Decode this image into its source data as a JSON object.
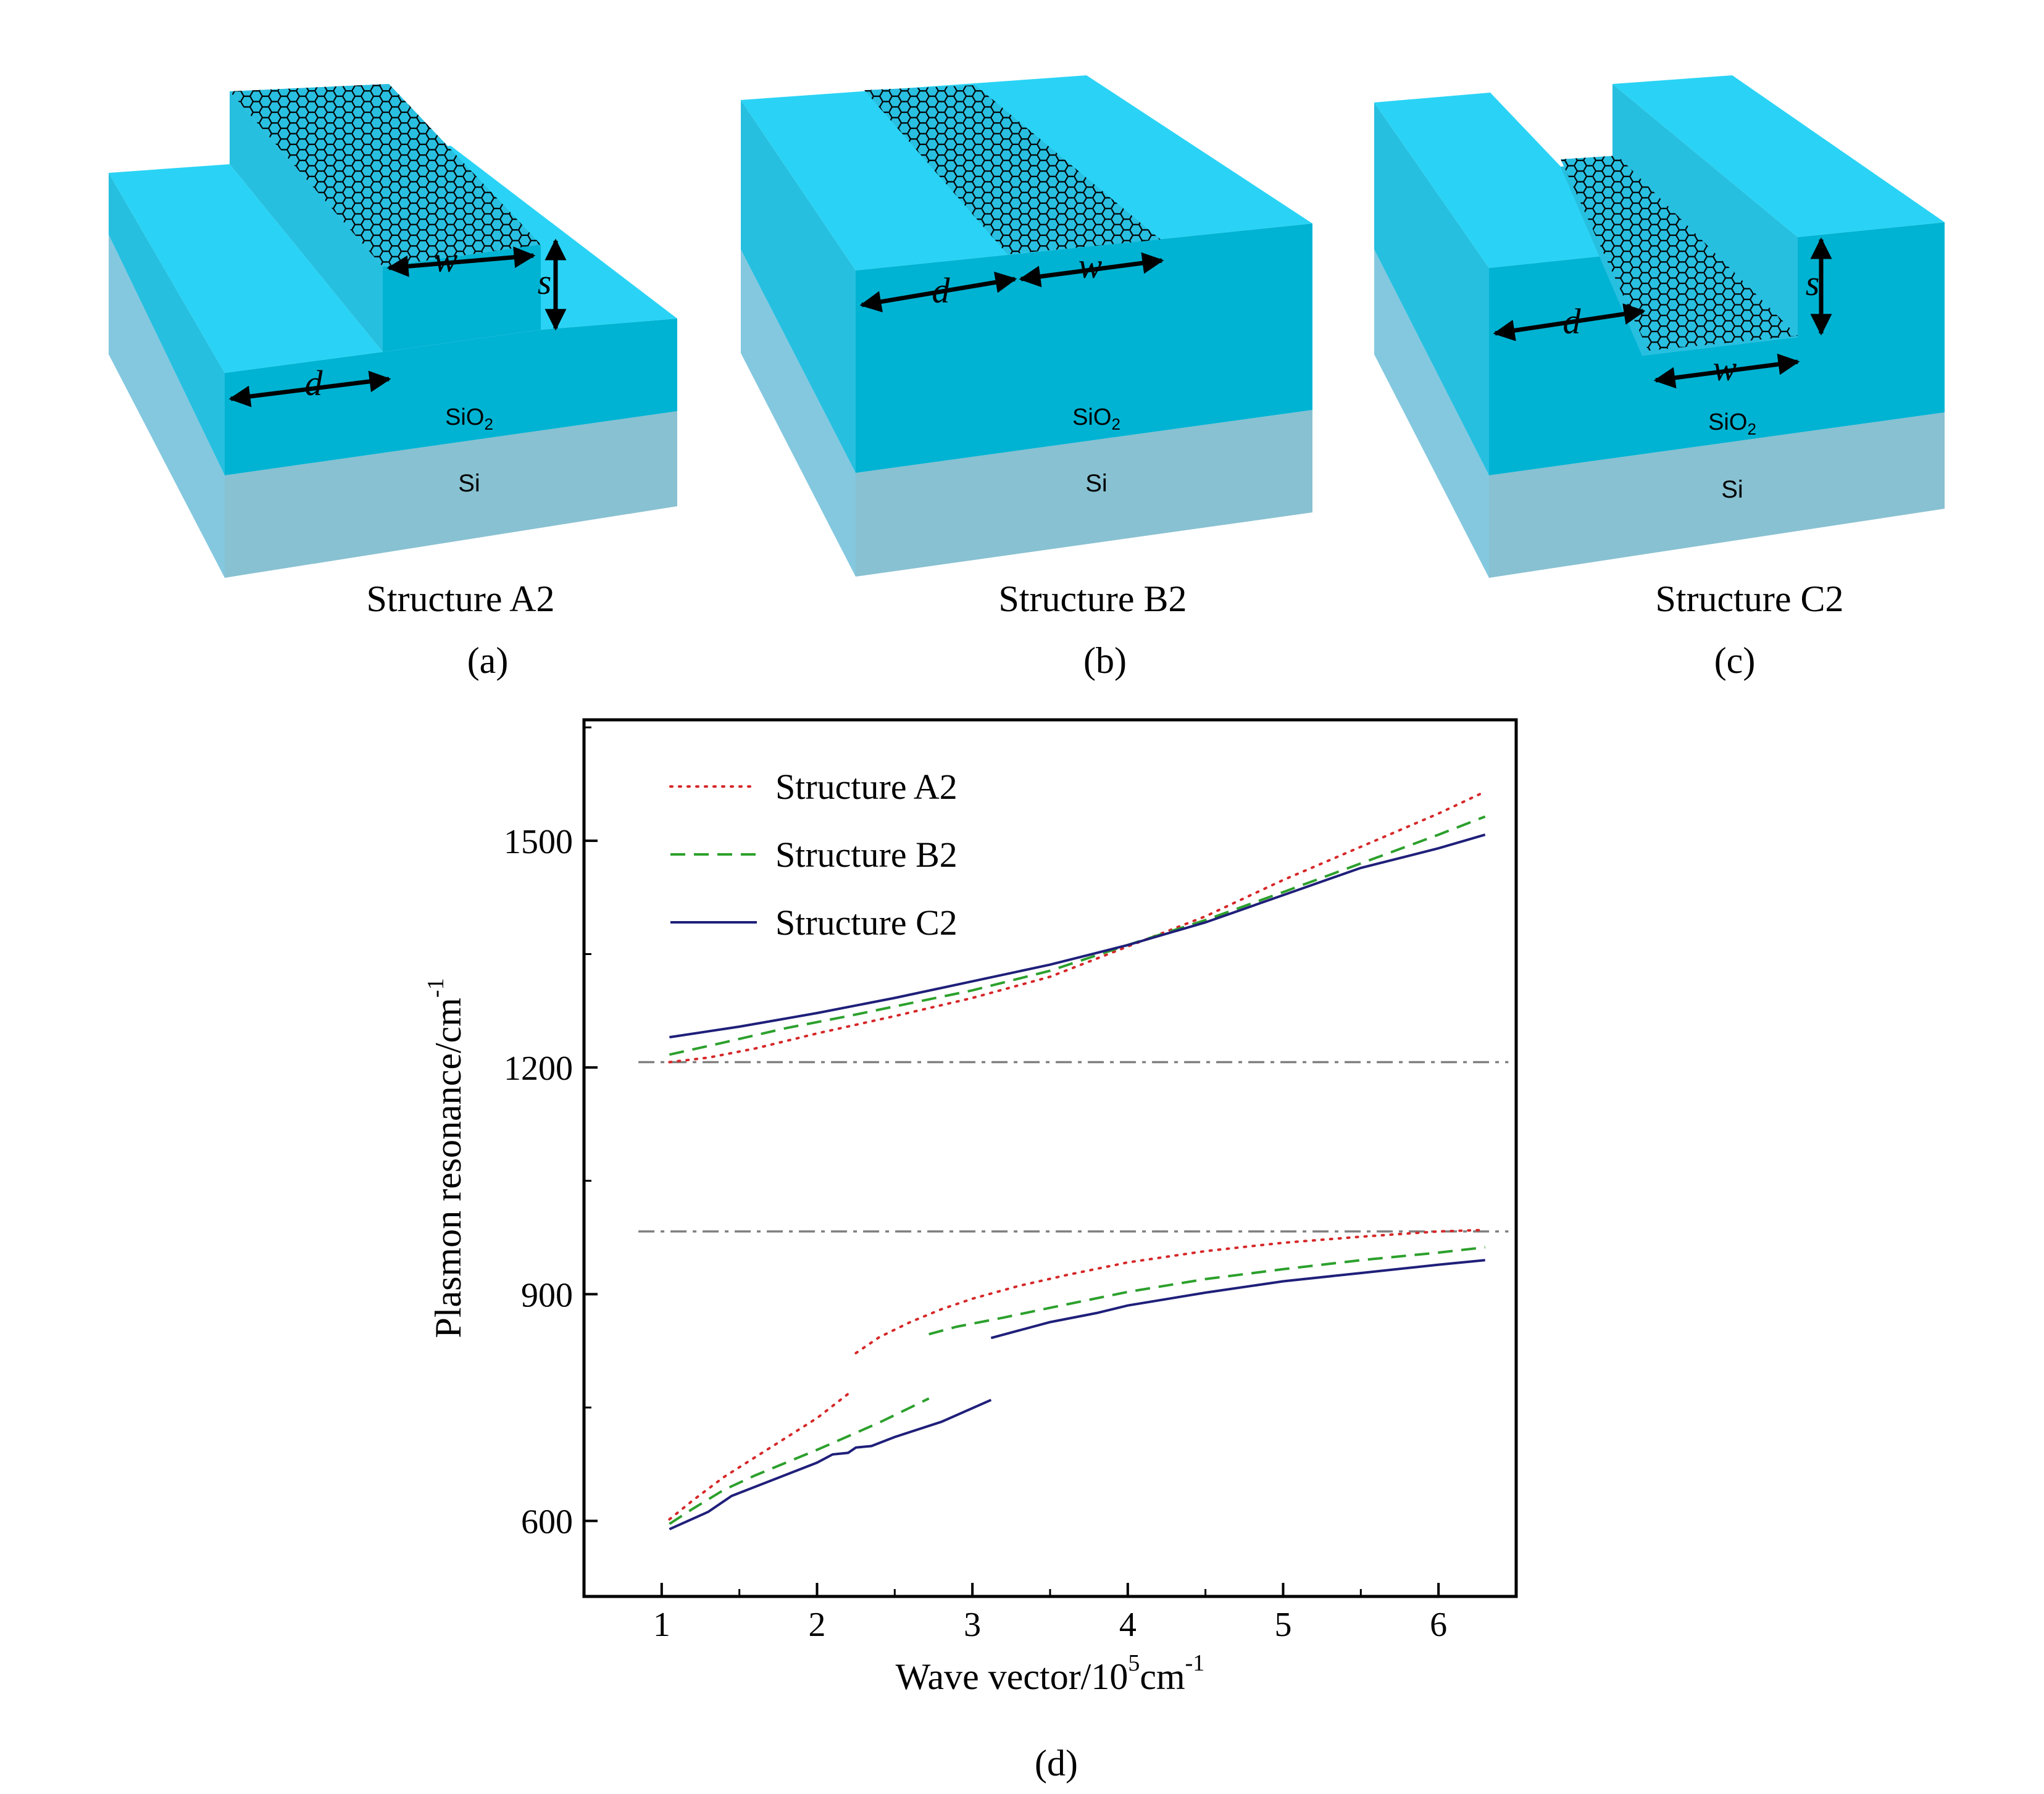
{
  "colors": {
    "slab_top": "#2ad3f5",
    "slab_front": "#00b3d3",
    "slab_side": "#27bfe0",
    "si_front": "#88c1d2",
    "si_side": "#84c8df",
    "graphene_fill": "#29bfe0",
    "arrow": "#000000",
    "series_a2": "#d62728",
    "series_b2": "#2ca02c",
    "series_c2": "#1f1f7a",
    "ref_line": "#808080"
  },
  "panels": [
    {
      "id": "a",
      "title": "Structure A2",
      "label": "(a)",
      "dim_d": "d",
      "dim_w": "w",
      "dim_s": "s",
      "layer_sio2_main": "SiO",
      "layer_sio2_sub": "2",
      "layer_si": "Si"
    },
    {
      "id": "b",
      "title": "Structure B2",
      "label": "(b)",
      "dim_d": "d",
      "dim_w": "w",
      "layer_sio2_main": "SiO",
      "layer_sio2_sub": "2",
      "layer_si": "Si"
    },
    {
      "id": "c",
      "title": "Structure C2",
      "label": "(c)",
      "dim_d": "d",
      "dim_w": "w",
      "dim_s": "s",
      "layer_sio2_main": "SiO",
      "layer_sio2_sub": "2",
      "layer_si": "Si"
    }
  ],
  "chart_label": "(d)",
  "chart_data": {
    "type": "line",
    "xlabel_main": "Wave vector/10",
    "xlabel_exp": "5",
    "xlabel_unit": "cm",
    "xlabel_unit_exp": "-1",
    "ylabel_main": "Plasmon resonance/cm",
    "ylabel_exp": "-1",
    "xlim": [
      0.5,
      6.5
    ],
    "ylim": [
      500,
      1660
    ],
    "xticks": [
      1,
      2,
      3,
      4,
      5,
      6
    ],
    "yticks": [
      600,
      900,
      1200,
      1500
    ],
    "legend_position": "top-left",
    "reference_lines": [
      1207,
      983
    ],
    "series": [
      {
        "name": "Structure A2",
        "style": "dotted",
        "segments": [
          [
            [
              1.05,
              602
            ],
            [
              1.2,
              627
            ],
            [
              1.4,
              658
            ],
            [
              1.6,
              684
            ],
            [
              1.8,
              710
            ],
            [
              2.0,
              736
            ],
            [
              2.2,
              768
            ]
          ],
          [
            [
              2.25,
              822
            ],
            [
              2.4,
              843
            ],
            [
              2.6,
              863
            ],
            [
              2.8,
              880
            ],
            [
              3.0,
              894
            ],
            [
              3.3,
              911
            ],
            [
              3.6,
              925
            ],
            [
              4.0,
              942
            ],
            [
              4.5,
              957
            ],
            [
              5.0,
              968
            ],
            [
              5.5,
              976
            ],
            [
              6.0,
              983
            ],
            [
              6.3,
              985
            ]
          ],
          [
            [
              1.05,
              1207
            ],
            [
              1.3,
              1213
            ],
            [
              1.6,
              1225
            ],
            [
              2.0,
              1245
            ],
            [
              2.5,
              1268
            ],
            [
              3.0,
              1292
            ],
            [
              3.5,
              1320
            ],
            [
              4.0,
              1360
            ],
            [
              4.5,
              1400
            ],
            [
              5.0,
              1448
            ],
            [
              5.5,
              1492
            ],
            [
              6.0,
              1536
            ],
            [
              6.3,
              1565
            ]
          ]
        ]
      },
      {
        "name": "Structure B2",
        "style": "dashed",
        "segments": [
          [
            [
              1.05,
              596
            ],
            [
              1.2,
              616
            ],
            [
              1.4,
              641
            ],
            [
              1.6,
              660
            ],
            [
              1.8,
              677
            ],
            [
              2.0,
              694
            ],
            [
              2.2,
              712
            ],
            [
              2.4,
              730
            ],
            [
              2.6,
              750
            ],
            [
              2.72,
              762
            ]
          ],
          [
            [
              2.72,
              847
            ],
            [
              2.9,
              857
            ],
            [
              3.2,
              869
            ],
            [
              3.5,
              882
            ],
            [
              4.0,
              903
            ],
            [
              4.5,
              920
            ],
            [
              5.0,
              933
            ],
            [
              5.5,
              945
            ],
            [
              6.0,
              955
            ],
            [
              6.3,
              962
            ]
          ],
          [
            [
              1.05,
              1217
            ],
            [
              1.4,
              1233
            ],
            [
              1.8,
              1252
            ],
            [
              2.2,
              1268
            ],
            [
              2.6,
              1285
            ],
            [
              3.0,
              1302
            ],
            [
              3.5,
              1328
            ],
            [
              4.0,
              1362
            ],
            [
              4.5,
              1395
            ],
            [
              5.0,
              1432
            ],
            [
              5.5,
              1470
            ],
            [
              6.0,
              1508
            ],
            [
              6.3,
              1532
            ]
          ]
        ]
      },
      {
        "name": "Structure C2",
        "style": "solid",
        "segments": [
          [
            [
              1.05,
              589
            ],
            [
              1.3,
              612
            ],
            [
              1.45,
              633
            ],
            [
              1.6,
              645
            ],
            [
              1.8,
              661
            ],
            [
              2.0,
              677
            ],
            [
              2.1,
              688
            ],
            [
              2.2,
              690
            ],
            [
              2.25,
              697
            ],
            [
              2.35,
              699
            ],
            [
              2.5,
              711
            ],
            [
              2.8,
              731
            ],
            [
              3.12,
              760
            ]
          ],
          [
            [
              3.12,
              842
            ],
            [
              3.3,
              852
            ],
            [
              3.5,
              863
            ],
            [
              3.8,
              875
            ],
            [
              4.0,
              885
            ],
            [
              4.5,
              902
            ],
            [
              5.0,
              917
            ],
            [
              5.5,
              928
            ],
            [
              6.0,
              939
            ],
            [
              6.3,
              945
            ]
          ],
          [
            [
              1.05,
              1240
            ],
            [
              1.5,
              1254
            ],
            [
              2.0,
              1272
            ],
            [
              2.5,
              1292
            ],
            [
              3.0,
              1314
            ],
            [
              3.5,
              1336
            ],
            [
              4.0,
              1362
            ],
            [
              4.5,
              1392
            ],
            [
              5.0,
              1428
            ],
            [
              5.5,
              1464
            ],
            [
              6.0,
              1490
            ],
            [
              6.3,
              1508
            ]
          ]
        ]
      }
    ]
  }
}
